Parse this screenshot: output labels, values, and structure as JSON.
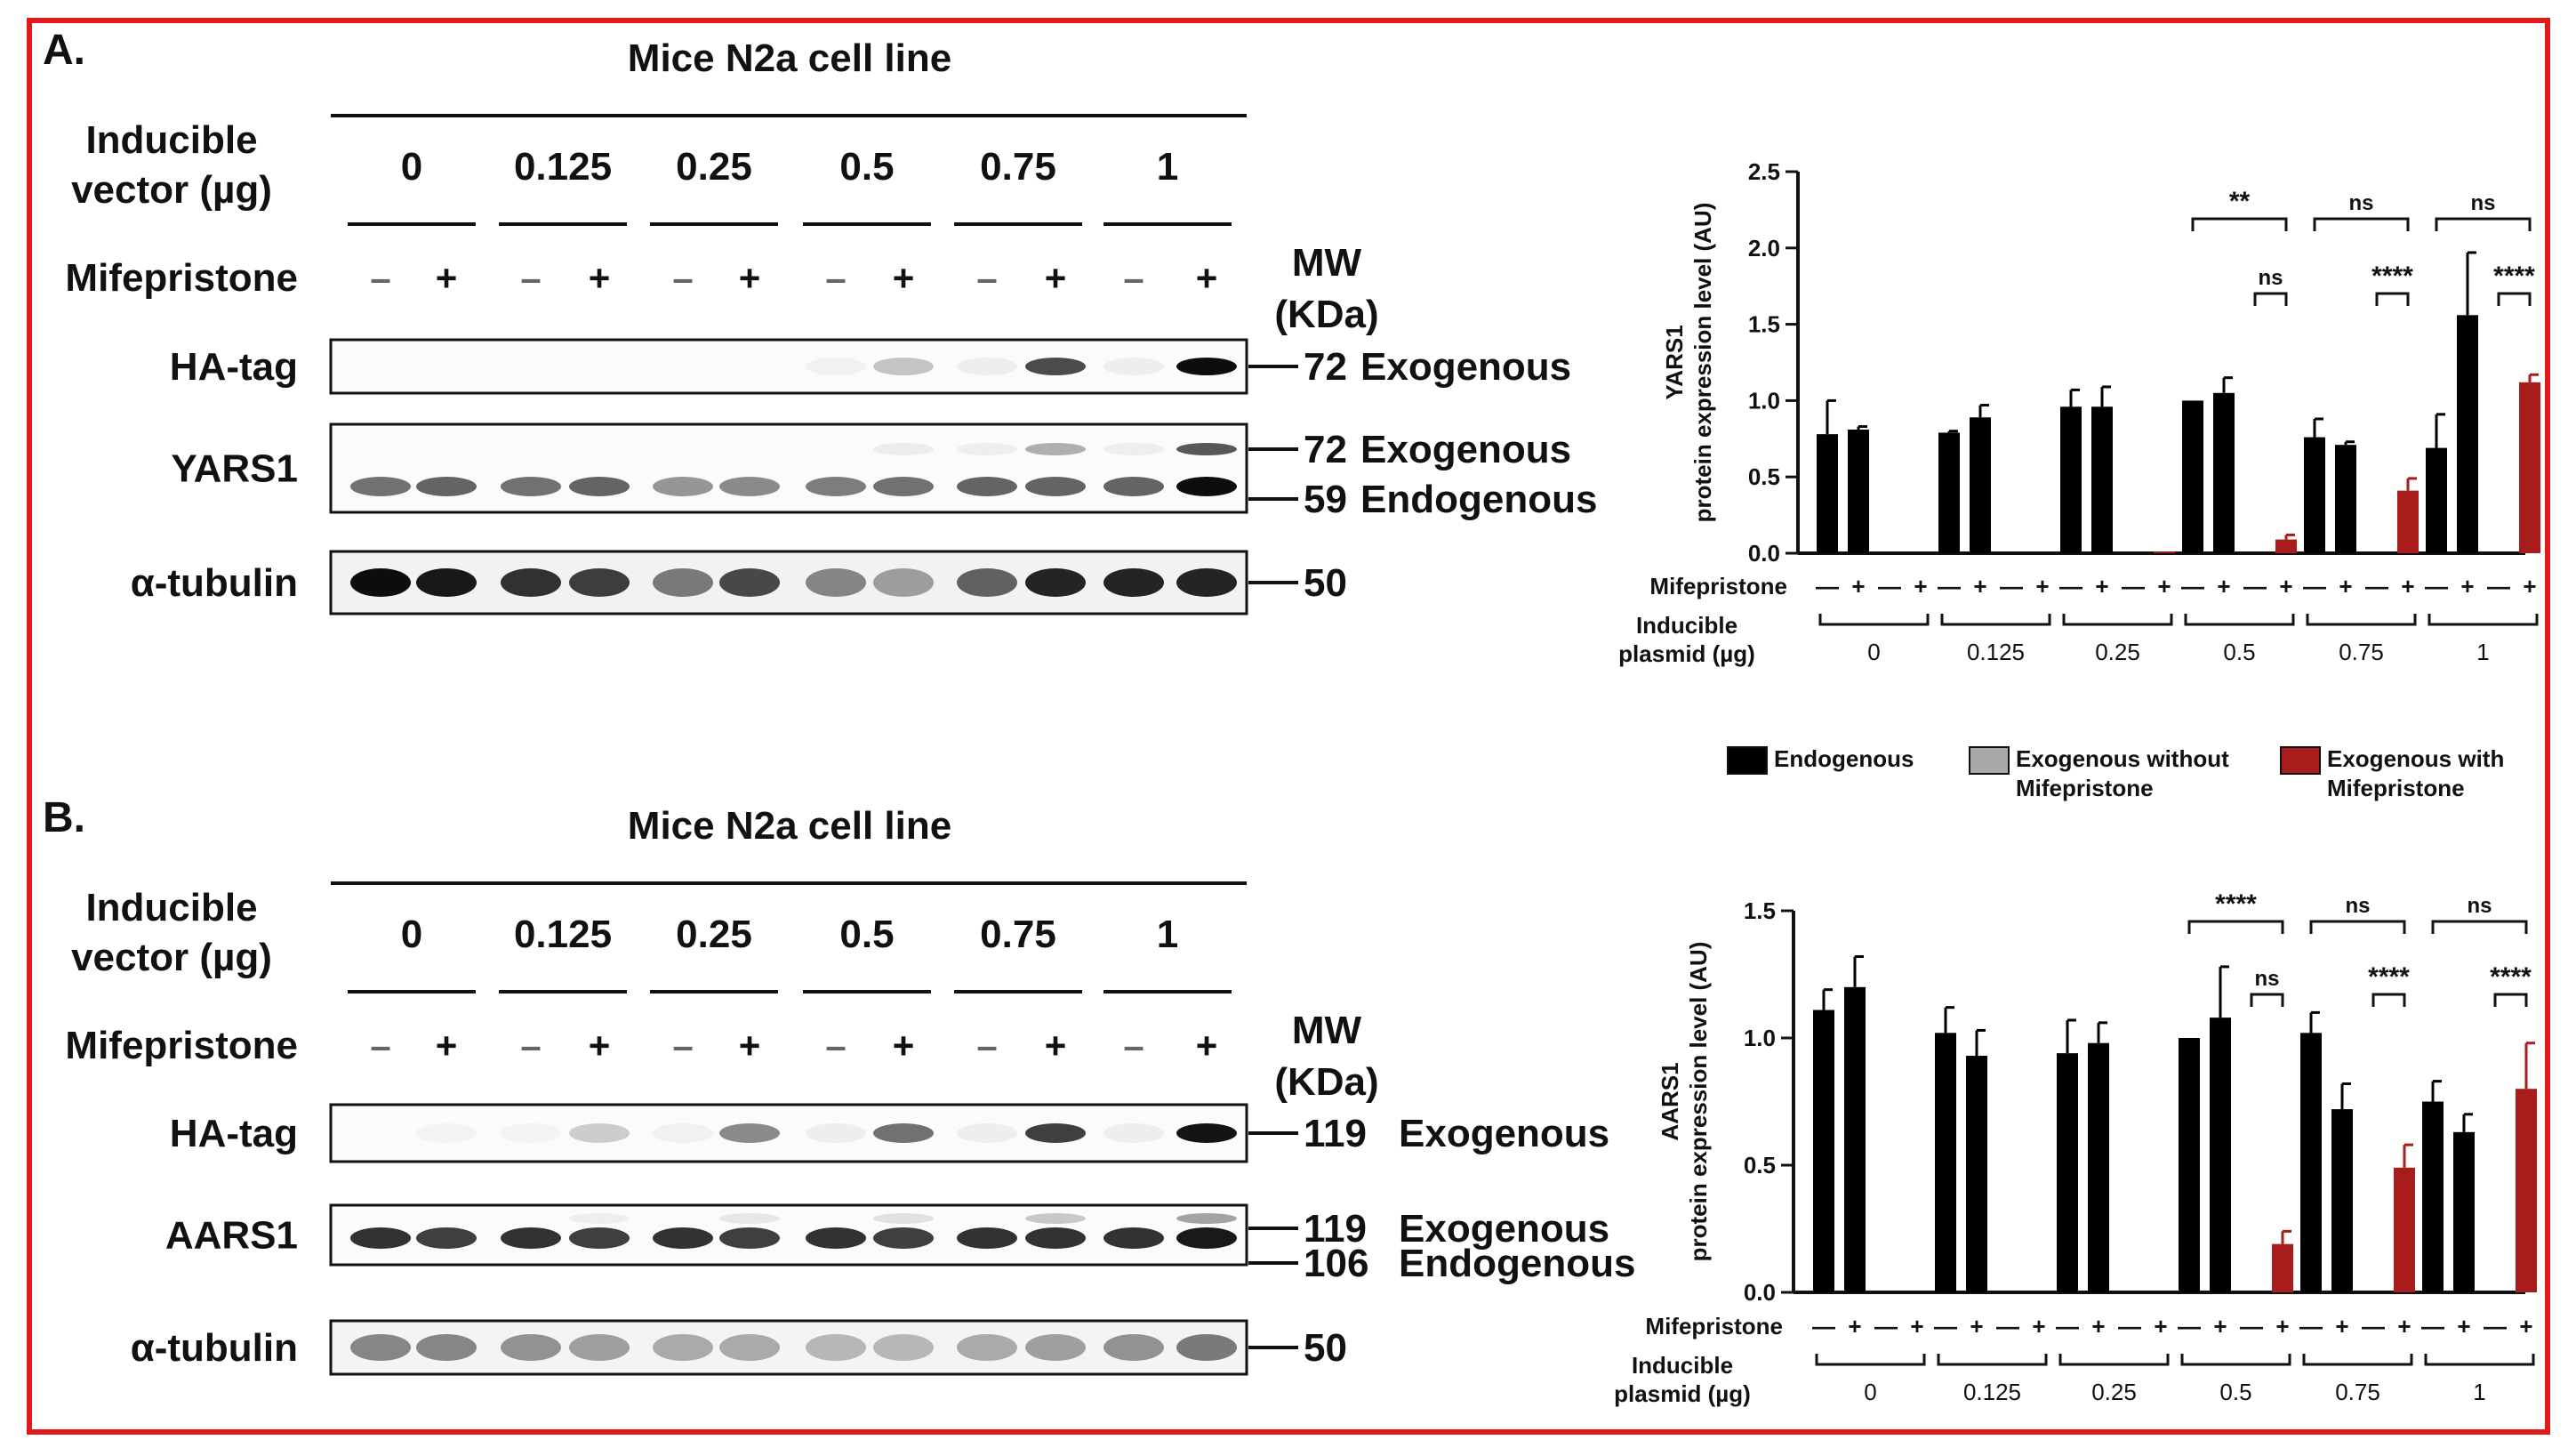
{
  "panel_a": {
    "letter": "A.",
    "title": "Mice N2a cell line",
    "vector_label_l1": "Inducible",
    "vector_label_l2": "vector (µg)",
    "doses": [
      "0",
      "0.125",
      "0.25",
      "0.5",
      "0.75",
      "1"
    ],
    "mife_label": "Mifepristone",
    "signs": [
      "–",
      "+"
    ],
    "mw_label_l1": "MW",
    "mw_label_l2": "(KDa)",
    "blots": [
      {
        "label": "HA-tag",
        "markers": [
          {
            "mw": "72",
            "desc": "Exogenous"
          }
        ]
      },
      {
        "label": "YARS1",
        "markers": [
          {
            "mw": "72",
            "desc": "Exogenous"
          },
          {
            "mw": "59",
            "desc": "Endogenous"
          }
        ]
      },
      {
        "label": "α-tubulin",
        "markers": [
          {
            "mw": "50",
            "desc": ""
          }
        ]
      }
    ]
  },
  "panel_b": {
    "letter": "B.",
    "title": "Mice N2a cell line",
    "vector_label_l1": "Inducible",
    "vector_label_l2": "vector (µg)",
    "doses": [
      "0",
      "0.125",
      "0.25",
      "0.5",
      "0.75",
      "1"
    ],
    "mife_label": "Mifepristone",
    "signs": [
      "–",
      "+"
    ],
    "mw_label_l1": "MW",
    "mw_label_l2": "(KDa)",
    "blots": [
      {
        "label": "HA-tag",
        "markers": [
          {
            "mw": "119",
            "desc": "Exogenous"
          }
        ]
      },
      {
        "label": "AARS1",
        "markers": [
          {
            "mw": "119",
            "desc": "Exogenous"
          },
          {
            "mw": "106",
            "desc": "Endogenous"
          }
        ]
      },
      {
        "label": "α-tubulin",
        "markers": [
          {
            "mw": "50",
            "desc": ""
          }
        ]
      }
    ]
  },
  "legend": [
    {
      "label_l1": "Endogenous",
      "label_l2": "",
      "color": "#000000"
    },
    {
      "label_l1": "Exogenous without",
      "label_l2": "Mifepristone",
      "color": "#a9a9a9"
    },
    {
      "label_l1": "Exogenous with",
      "label_l2": "Mifepristone",
      "color": "#a81c1c"
    }
  ],
  "colors": {
    "frame": "#e01a1a",
    "endogenous": "#000000",
    "exo_without": "#a9a9a9",
    "exo_with": "#a81c1c"
  },
  "chart_data": [
    {
      "type": "bar",
      "panel": "A",
      "ylabel_l1": "YARS1",
      "ylabel_l2": "protein expression level (AU)",
      "ylim": [
        0,
        2.5
      ],
      "yticks": [
        "0.0",
        "0.5",
        "1.0",
        "1.5",
        "2.0",
        "2.5"
      ],
      "x_row1_label": "Mifepristone",
      "x_row2_label_l1": "Inducible",
      "x_row2_label_l2": "plasmid (µg)",
      "signs": [
        "—",
        "+",
        "—",
        "+"
      ],
      "groups": [
        "0",
        "0.125",
        "0.25",
        "0.5",
        "0.75",
        "1"
      ],
      "series": [
        {
          "name": "Endogenous",
          "color": "#000000"
        },
        {
          "name": "Exogenous without Mifepristone",
          "color": "#a9a9a9"
        },
        {
          "name": "Exogenous with Mifepristone",
          "color": "#a81c1c"
        }
      ],
      "bars": [
        [
          {
            "v": 0.78,
            "e": 0.22,
            "s": 0
          },
          {
            "v": 0.81,
            "e": 0.02,
            "s": 0
          },
          {
            "v": 0,
            "e": 0,
            "s": 1
          },
          {
            "v": 0,
            "e": 0,
            "s": 2
          }
        ],
        [
          {
            "v": 0.79,
            "e": 0.01,
            "s": 0
          },
          {
            "v": 0.89,
            "e": 0.08,
            "s": 0
          },
          {
            "v": 0,
            "e": 0,
            "s": 1
          },
          {
            "v": 0,
            "e": 0,
            "s": 2
          }
        ],
        [
          {
            "v": 0.96,
            "e": 0.11,
            "s": 0
          },
          {
            "v": 0.96,
            "e": 0.13,
            "s": 0
          },
          {
            "v": 0,
            "e": 0,
            "s": 1
          },
          {
            "v": 0.01,
            "e": 0,
            "s": 2
          }
        ],
        [
          {
            "v": 1.0,
            "e": 0,
            "s": 0
          },
          {
            "v": 1.05,
            "e": 0.1,
            "s": 0
          },
          {
            "v": 0,
            "e": 0,
            "s": 1
          },
          {
            "v": 0.09,
            "e": 0.03,
            "s": 2
          }
        ],
        [
          {
            "v": 0.76,
            "e": 0.12,
            "s": 0
          },
          {
            "v": 0.71,
            "e": 0.02,
            "s": 0
          },
          {
            "v": 0,
            "e": 0,
            "s": 1
          },
          {
            "v": 0.41,
            "e": 0.08,
            "s": 2
          }
        ],
        [
          {
            "v": 0.69,
            "e": 0.22,
            "s": 0
          },
          {
            "v": 1.56,
            "e": 0.41,
            "s": 0
          },
          {
            "v": 0,
            "e": 0,
            "s": 1
          },
          {
            "v": 1.12,
            "e": 0.05,
            "s": 2
          }
        ]
      ],
      "significance": [
        {
          "group": 3,
          "upper": "**",
          "lower": "ns"
        },
        {
          "group": 4,
          "upper": "ns",
          "lower": "****"
        },
        {
          "group": 5,
          "upper": "ns",
          "lower": "****"
        }
      ]
    },
    {
      "type": "bar",
      "panel": "B",
      "ylabel_l1": "AARS1",
      "ylabel_l2": "protein expression level (AU)",
      "ylim": [
        0,
        1.5
      ],
      "yticks": [
        "0.0",
        "0.5",
        "1.0",
        "1.5"
      ],
      "x_row1_label": "Mifepristone",
      "x_row2_label_l1": "Inducible",
      "x_row2_label_l2": "plasmid (µg)",
      "signs": [
        "—",
        "+",
        "—",
        "+"
      ],
      "groups": [
        "0",
        "0.125",
        "0.25",
        "0.5",
        "0.75",
        "1"
      ],
      "series": [
        {
          "name": "Endogenous",
          "color": "#000000"
        },
        {
          "name": "Exogenous without Mifepristone",
          "color": "#a9a9a9"
        },
        {
          "name": "Exogenous with Mifepristone",
          "color": "#a81c1c"
        }
      ],
      "bars": [
        [
          {
            "v": 1.11,
            "e": 0.08,
            "s": 0
          },
          {
            "v": 1.2,
            "e": 0.12,
            "s": 0
          },
          {
            "v": 0,
            "e": 0,
            "s": 1
          },
          {
            "v": 0,
            "e": 0,
            "s": 2
          }
        ],
        [
          {
            "v": 1.02,
            "e": 0.1,
            "s": 0
          },
          {
            "v": 0.93,
            "e": 0.1,
            "s": 0
          },
          {
            "v": 0,
            "e": 0,
            "s": 1
          },
          {
            "v": 0,
            "e": 0,
            "s": 2
          }
        ],
        [
          {
            "v": 0.94,
            "e": 0.13,
            "s": 0
          },
          {
            "v": 0.98,
            "e": 0.08,
            "s": 0
          },
          {
            "v": 0,
            "e": 0,
            "s": 1
          },
          {
            "v": 0,
            "e": 0,
            "s": 2
          }
        ],
        [
          {
            "v": 1.0,
            "e": 0,
            "s": 0
          },
          {
            "v": 1.08,
            "e": 0.2,
            "s": 0
          },
          {
            "v": 0,
            "e": 0,
            "s": 1
          },
          {
            "v": 0.19,
            "e": 0.05,
            "s": 2
          }
        ],
        [
          {
            "v": 1.02,
            "e": 0.08,
            "s": 0
          },
          {
            "v": 0.72,
            "e": 0.1,
            "s": 0
          },
          {
            "v": 0,
            "e": 0,
            "s": 1
          },
          {
            "v": 0.49,
            "e": 0.09,
            "s": 2
          }
        ],
        [
          {
            "v": 0.75,
            "e": 0.08,
            "s": 0
          },
          {
            "v": 0.63,
            "e": 0.07,
            "s": 0
          },
          {
            "v": 0,
            "e": 0,
            "s": 1
          },
          {
            "v": 0.8,
            "e": 0.18,
            "s": 2
          }
        ]
      ],
      "significance": [
        {
          "group": 3,
          "upper": "****",
          "lower": "ns"
        },
        {
          "group": 4,
          "upper": "ns",
          "lower": "****"
        },
        {
          "group": 5,
          "upper": "ns",
          "lower": "****"
        }
      ]
    }
  ]
}
